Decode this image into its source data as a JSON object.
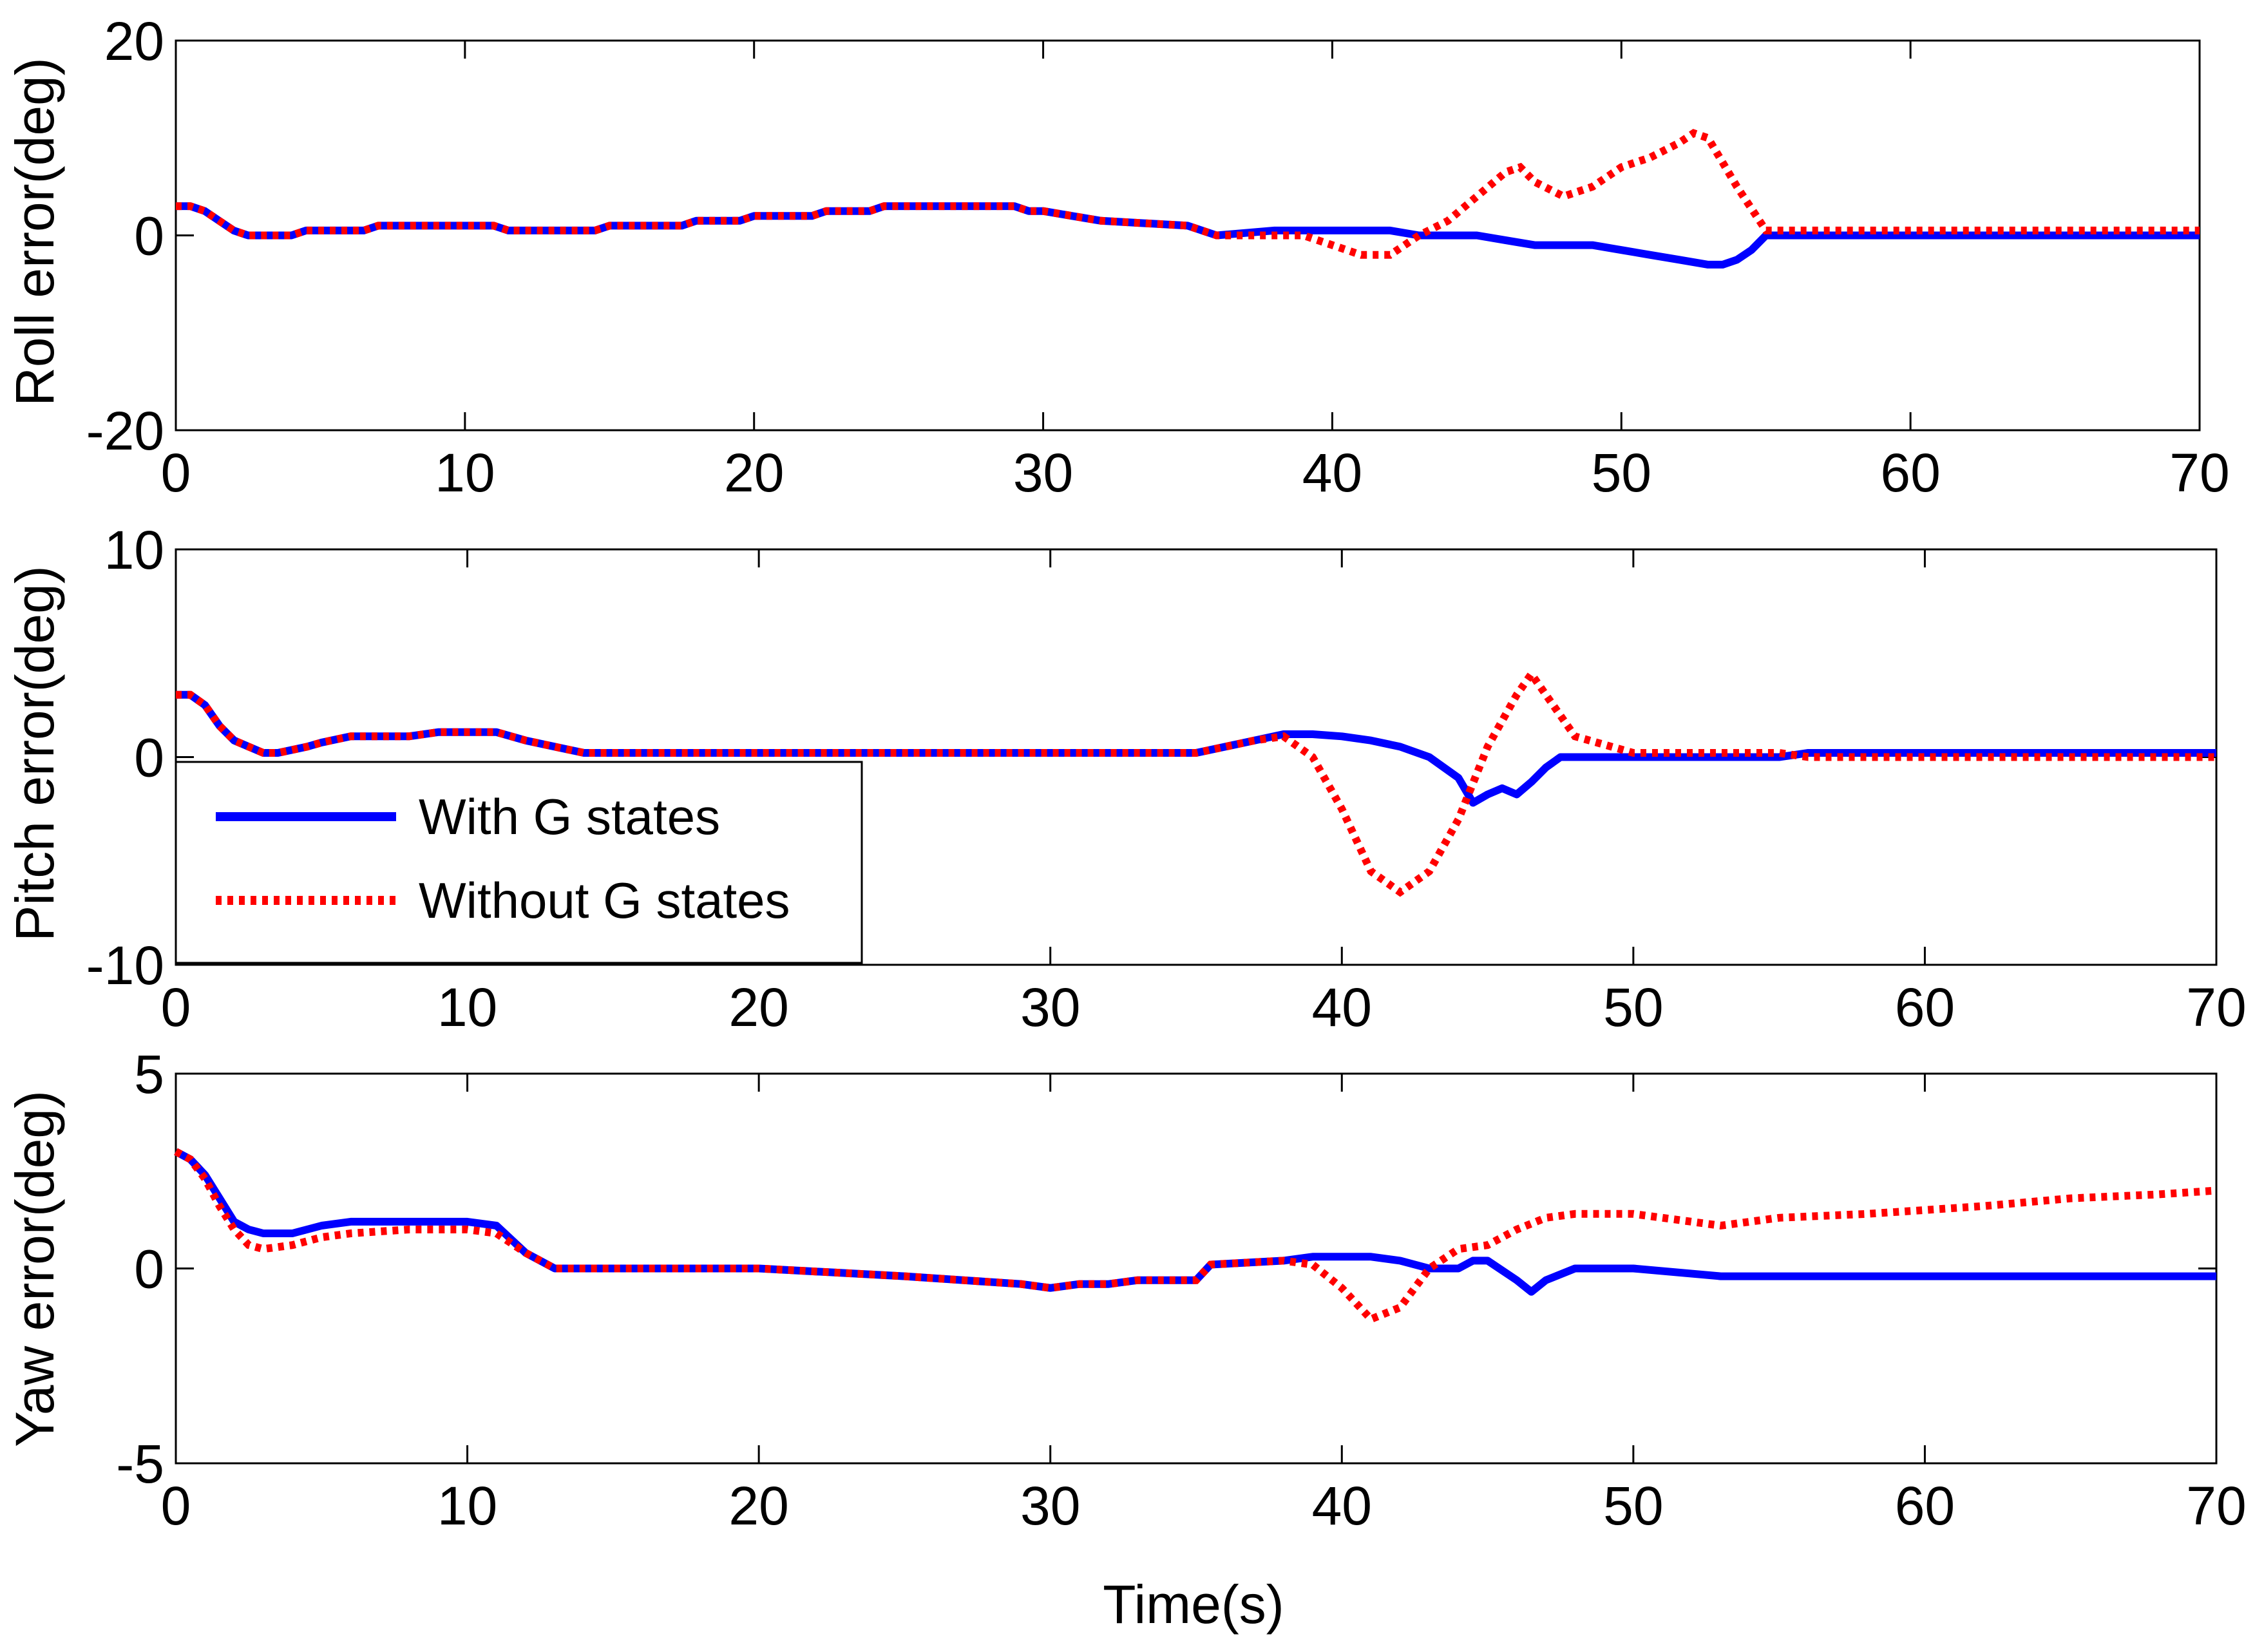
{
  "figure": {
    "xlabel": "Time(s)"
  },
  "legend": {
    "entries": [
      {
        "label": "With G states",
        "color": "#0000ff",
        "style": "solid"
      },
      {
        "label": "Without G states",
        "color": "#ff0000",
        "style": "dotted"
      }
    ],
    "location": "lower-left of pitch panel"
  },
  "chart_data": [
    {
      "type": "line",
      "panel": "roll",
      "title": "",
      "xlabel": "",
      "ylabel": "Roll error(deg)",
      "xlim": [
        0,
        70
      ],
      "ylim": [
        -20,
        20
      ],
      "xticks": [
        0,
        10,
        20,
        30,
        40,
        50,
        60,
        70
      ],
      "yticks": [
        -20,
        0,
        20
      ],
      "grid": false,
      "series": [
        {
          "name": "With G states",
          "color": "#0000ff",
          "style": "solid",
          "x": [
            0,
            0.5,
            1,
            1.5,
            2,
            2.5,
            3,
            4,
            4.5,
            6.5,
            7,
            10,
            11,
            11.5,
            14.5,
            15,
            17.5,
            18,
            19.5,
            20,
            22,
            22.5,
            24,
            24.5,
            29,
            29.5,
            30,
            31,
            32,
            35,
            36,
            38,
            41,
            42,
            43,
            44,
            45,
            46,
            47,
            48,
            49,
            50,
            51,
            52,
            53,
            53.5,
            54,
            54.5,
            55,
            56,
            60,
            70
          ],
          "y": [
            3,
            3,
            2.5,
            1.5,
            0.5,
            0,
            0,
            0,
            0.5,
            0.5,
            1,
            1,
            1,
            0.5,
            0.5,
            1,
            1,
            1.5,
            1.5,
            2,
            2,
            2.5,
            2.5,
            3,
            3,
            2.5,
            2.5,
            2,
            1.5,
            1,
            0,
            0.5,
            0.5,
            0.5,
            0,
            0,
            0,
            -0.5,
            -1,
            -1,
            -1,
            -1.5,
            -2,
            -2.5,
            -3,
            -3,
            -2.5,
            -1.5,
            0,
            0,
            0,
            0
          ]
        },
        {
          "name": "Without G states",
          "color": "#ff0000",
          "style": "dotted",
          "x": [
            0,
            0.5,
            1,
            1.5,
            2,
            2.5,
            3,
            4,
            4.5,
            6.5,
            7,
            10,
            11,
            11.5,
            14.5,
            15,
            17.5,
            18,
            19.5,
            20,
            22,
            22.5,
            24,
            24.5,
            29,
            29.5,
            30,
            31,
            32,
            35,
            36,
            38,
            39,
            40,
            41,
            42,
            43,
            44,
            45,
            46,
            46.5,
            47,
            48,
            49,
            50,
            51,
            52,
            52.5,
            53,
            54,
            55,
            56,
            60,
            70
          ],
          "y": [
            3,
            3,
            2.5,
            1.5,
            0.5,
            0,
            0,
            0,
            0.5,
            0.5,
            1,
            1,
            1,
            0.5,
            0.5,
            1,
            1,
            1.5,
            1.5,
            2,
            2,
            2.5,
            2.5,
            3,
            3,
            2.5,
            2.5,
            2,
            1.5,
            1,
            0,
            0,
            0,
            -1,
            -2,
            -2,
            0,
            1.5,
            4,
            6.5,
            7,
            5.5,
            4,
            5,
            7,
            8,
            9.5,
            10.5,
            10,
            5,
            0.5,
            0.5,
            0.5,
            0.5
          ]
        }
      ]
    },
    {
      "type": "line",
      "panel": "pitch",
      "title": "",
      "xlabel": "",
      "ylabel": "Pitch error(deg)",
      "xlim": [
        0,
        70
      ],
      "ylim": [
        -10,
        10
      ],
      "xticks": [
        0,
        10,
        20,
        30,
        40,
        50,
        60,
        70
      ],
      "yticks": [
        -10,
        0,
        10
      ],
      "grid": false,
      "series": [
        {
          "name": "With G states",
          "color": "#0000ff",
          "style": "solid",
          "x": [
            0,
            0.5,
            1,
            1.5,
            2,
            2.5,
            3,
            3.5,
            4.5,
            5,
            6,
            8,
            9,
            11,
            12,
            13,
            14,
            20,
            30,
            35,
            36,
            37,
            38,
            39,
            40,
            41,
            42,
            43,
            44,
            44.5,
            45,
            45.5,
            46,
            46.5,
            47,
            47.5,
            48,
            55,
            56,
            60,
            70
          ],
          "y": [
            3,
            3,
            2.5,
            1.5,
            0.8,
            0.5,
            0.2,
            0.2,
            0.5,
            0.7,
            1,
            1,
            1.2,
            1.2,
            0.8,
            0.5,
            0.2,
            0.2,
            0.2,
            0.2,
            0.5,
            0.8,
            1.1,
            1.1,
            1,
            0.8,
            0.5,
            0,
            -1,
            -2.2,
            -1.8,
            -1.5,
            -1.8,
            -1.2,
            -0.5,
            0,
            0,
            0,
            0.2,
            0.2,
            0.2
          ]
        },
        {
          "name": "Without G states",
          "color": "#ff0000",
          "style": "dotted",
          "x": [
            0,
            0.5,
            1,
            1.5,
            2,
            2.5,
            3,
            3.5,
            4.5,
            5,
            6,
            8,
            9,
            11,
            12,
            13,
            14,
            20,
            30,
            35,
            36,
            37,
            38,
            39,
            40,
            41,
            42,
            43,
            44,
            45,
            46,
            46.5,
            47,
            48,
            50,
            55,
            56,
            60,
            70
          ],
          "y": [
            3,
            3,
            2.5,
            1.5,
            0.8,
            0.5,
            0.2,
            0.2,
            0.5,
            0.7,
            1,
            1,
            1.2,
            1.2,
            0.8,
            0.5,
            0.2,
            0.2,
            0.2,
            0.2,
            0.5,
            0.8,
            1,
            0,
            -2.5,
            -5.5,
            -6.5,
            -5.5,
            -3,
            0.5,
            3,
            4,
            3,
            1,
            0.2,
            0.2,
            0,
            0,
            0
          ]
        }
      ]
    },
    {
      "type": "line",
      "panel": "yaw",
      "title": "",
      "xlabel": "Time(s)",
      "ylabel": "Yaw error(deg)",
      "xlim": [
        0,
        70
      ],
      "ylim": [
        -5,
        5
      ],
      "xticks": [
        0,
        10,
        20,
        30,
        40,
        50,
        60,
        70
      ],
      "yticks": [
        -5,
        0,
        5
      ],
      "grid": false,
      "series": [
        {
          "name": "With G states",
          "color": "#0000ff",
          "style": "solid",
          "x": [
            0,
            0.5,
            1,
            1.5,
            2,
            2.5,
            3,
            4,
            4.5,
            5,
            6,
            8,
            10,
            11,
            12,
            13,
            20,
            25,
            27,
            29,
            30,
            31,
            32,
            33,
            34,
            35,
            35.5,
            38,
            39,
            40,
            41,
            42,
            43,
            44,
            44.5,
            45,
            46,
            46.5,
            47,
            48,
            50,
            53,
            54,
            55,
            60,
            70
          ],
          "y": [
            3,
            2.8,
            2.4,
            1.8,
            1.2,
            1,
            0.9,
            0.9,
            1,
            1.1,
            1.2,
            1.2,
            1.2,
            1.1,
            0.4,
            0,
            0,
            -0.2,
            -0.3,
            -0.4,
            -0.5,
            -0.4,
            -0.4,
            -0.3,
            -0.3,
            -0.3,
            0.1,
            0.2,
            0.3,
            0.3,
            0.3,
            0.2,
            0,
            0,
            0.2,
            0.2,
            -0.3,
            -0.6,
            -0.3,
            0,
            0,
            -0.2,
            -0.2,
            -0.2,
            -0.2,
            -0.2
          ]
        },
        {
          "name": "Without G states",
          "color": "#ff0000",
          "style": "dotted",
          "x": [
            0,
            0.5,
            1,
            1.5,
            2,
            2.5,
            3,
            4,
            5,
            6,
            8,
            10,
            11,
            12,
            13,
            20,
            25,
            27,
            29,
            30,
            31,
            32,
            33,
            34,
            35,
            35.5,
            38,
            39,
            40,
            41,
            42,
            43,
            44,
            45,
            46,
            47,
            48,
            50,
            52,
            53,
            55,
            58,
            60,
            62,
            65,
            68,
            70
          ],
          "y": [
            3,
            2.8,
            2.3,
            1.6,
            1,
            0.6,
            0.5,
            0.6,
            0.8,
            0.9,
            1,
            1,
            0.9,
            0.4,
            0,
            0,
            -0.2,
            -0.3,
            -0.4,
            -0.5,
            -0.4,
            -0.4,
            -0.3,
            -0.3,
            -0.3,
            0.1,
            0.2,
            0.1,
            -0.5,
            -1.3,
            -1,
            0,
            0.5,
            0.6,
            1,
            1.3,
            1.4,
            1.4,
            1.2,
            1.1,
            1.3,
            1.4,
            1.5,
            1.6,
            1.8,
            1.9,
            2
          ]
        }
      ]
    }
  ]
}
